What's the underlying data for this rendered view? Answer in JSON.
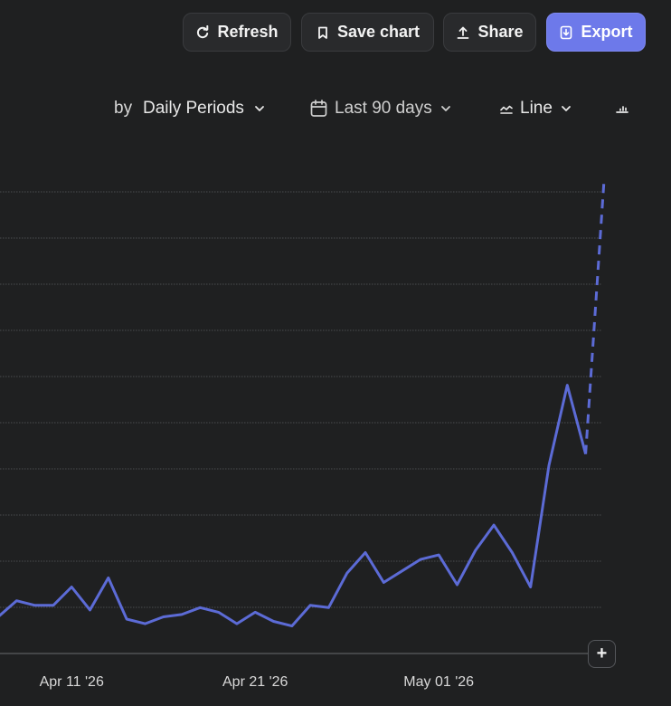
{
  "toolbar": {
    "refresh_label": "Refresh",
    "save_label": "Save chart",
    "share_label": "Share",
    "export_label": "Export"
  },
  "controls": {
    "by_label": "by",
    "period_label": "Daily Periods",
    "range_label": "Last 90 days",
    "chart_type_label": "Line"
  },
  "colors": {
    "background": "#1f2021",
    "series": "#5c6bd6",
    "accent_button": "#6d79ea",
    "gridline": "#4a4b4e"
  },
  "icons": {
    "refresh": "refresh-icon",
    "save": "bookmark-icon",
    "share": "upload-icon",
    "export": "export-icon",
    "range": "calendar-icon",
    "chart_type": "line-chart-icon",
    "extra": "chart-settings-icon",
    "zoom": "plus-icon"
  },
  "chart_data": {
    "type": "line",
    "title": "",
    "xlabel": "",
    "ylabel": "",
    "grid": true,
    "x_ticks": [
      {
        "label": "Apr 11 '26",
        "x": "2026-04-11"
      },
      {
        "label": "Apr 21 '26",
        "x": "2026-04-21"
      },
      {
        "label": "May 01 '26",
        "x": "2026-05-01"
      }
    ],
    "x": [
      "2026-04-07",
      "2026-04-08",
      "2026-04-09",
      "2026-04-10",
      "2026-04-11",
      "2026-04-12",
      "2026-04-13",
      "2026-04-14",
      "2026-04-15",
      "2026-04-16",
      "2026-04-17",
      "2026-04-18",
      "2026-04-19",
      "2026-04-20",
      "2026-04-21",
      "2026-04-22",
      "2026-04-23",
      "2026-04-24",
      "2026-04-25",
      "2026-04-26",
      "2026-04-27",
      "2026-04-28",
      "2026-04-29",
      "2026-04-30",
      "2026-05-01",
      "2026-05-02",
      "2026-05-03",
      "2026-05-04",
      "2026-05-05",
      "2026-05-06",
      "2026-05-07",
      "2026-05-08",
      "2026-05-09",
      "2026-05-10"
    ],
    "series": [
      {
        "values": [
          0.8,
          1.15,
          1.05,
          1.05,
          1.45,
          0.95,
          1.65,
          0.75,
          0.65,
          0.8,
          0.85,
          1.0,
          0.9,
          0.65,
          0.9,
          0.7,
          0.6,
          1.05,
          1.0,
          1.75,
          2.2,
          1.55,
          1.8,
          2.05,
          2.15,
          1.5,
          2.25,
          2.8,
          2.2,
          1.45,
          4.1,
          5.85,
          4.35,
          10.3
        ],
        "projected_from_index": 32
      }
    ],
    "ylim": [
      0,
      10.5
    ]
  }
}
